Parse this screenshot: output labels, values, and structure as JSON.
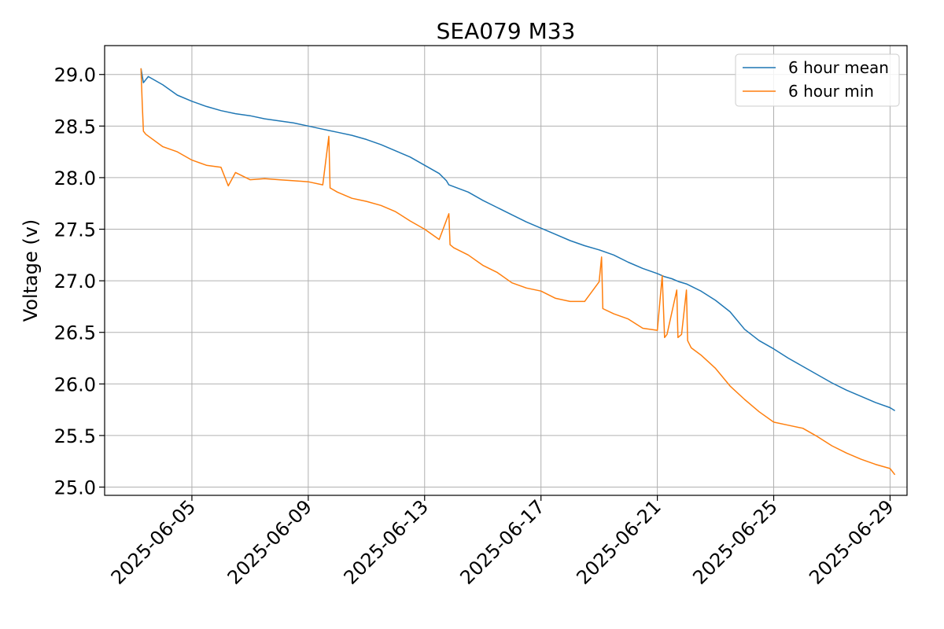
{
  "chart_data": {
    "type": "line",
    "title": "SEA079 M33",
    "xlabel": "",
    "ylabel": "Voltage (v)",
    "x_type": "date",
    "xlim": [
      "2025-06-02T00:00",
      "2025-06-29T14:00"
    ],
    "ylim": [
      24.92,
      29.28
    ],
    "x_ticks": [
      "2025-06-05",
      "2025-06-09",
      "2025-06-13",
      "2025-06-17",
      "2025-06-21",
      "2025-06-25",
      "2025-06-29"
    ],
    "y_ticks": [
      25.0,
      25.5,
      26.0,
      26.5,
      27.0,
      27.5,
      28.0,
      28.5,
      29.0
    ],
    "y_tick_labels": [
      "25.0",
      "25.5",
      "26.0",
      "26.5",
      "27.0",
      "27.5",
      "28.0",
      "28.5",
      "29.0"
    ],
    "grid": true,
    "legend_position": "top-right",
    "series": [
      {
        "name": "6 hour mean",
        "color": "#1f77b4",
        "x": [
          "2025-06-03T06:00",
          "2025-06-03T08:00",
          "2025-06-03T12:00",
          "2025-06-04T00:00",
          "2025-06-04T12:00",
          "2025-06-05T00:00",
          "2025-06-05T12:00",
          "2025-06-06T00:00",
          "2025-06-06T12:00",
          "2025-06-07T00:00",
          "2025-06-07T12:00",
          "2025-06-08T00:00",
          "2025-06-08T12:00",
          "2025-06-09T00:00",
          "2025-06-09T12:00",
          "2025-06-09T16:00",
          "2025-06-10T00:00",
          "2025-06-10T12:00",
          "2025-06-11T00:00",
          "2025-06-11T12:00",
          "2025-06-12T00:00",
          "2025-06-12T12:00",
          "2025-06-13T00:00",
          "2025-06-13T12:00",
          "2025-06-13T18:00",
          "2025-06-13T20:00",
          "2025-06-14T12:00",
          "2025-06-15T00:00",
          "2025-06-15T12:00",
          "2025-06-16T00:00",
          "2025-06-16T12:00",
          "2025-06-17T00:00",
          "2025-06-17T12:00",
          "2025-06-18T00:00",
          "2025-06-18T12:00",
          "2025-06-19T00:00",
          "2025-06-19T12:00",
          "2025-06-20T00:00",
          "2025-06-20T12:00",
          "2025-06-21T00:00",
          "2025-06-21T06:00",
          "2025-06-21T12:00",
          "2025-06-21T18:00",
          "2025-06-22T00:00",
          "2025-06-22T12:00",
          "2025-06-23T00:00",
          "2025-06-23T12:00",
          "2025-06-24T00:00",
          "2025-06-24T12:00",
          "2025-06-25T00:00",
          "2025-06-25T12:00",
          "2025-06-26T00:00",
          "2025-06-26T12:00",
          "2025-06-27T00:00",
          "2025-06-27T12:00",
          "2025-06-28T00:00",
          "2025-06-28T12:00",
          "2025-06-29T00:00",
          "2025-06-29T04:00"
        ],
        "y": [
          29.06,
          28.92,
          28.98,
          28.9,
          28.8,
          28.74,
          28.69,
          28.65,
          28.62,
          28.6,
          28.57,
          28.55,
          28.53,
          28.5,
          28.47,
          28.46,
          28.44,
          28.41,
          28.37,
          28.32,
          28.26,
          28.2,
          28.12,
          28.04,
          27.97,
          27.93,
          27.86,
          27.78,
          27.71,
          27.64,
          27.57,
          27.51,
          27.45,
          27.39,
          27.34,
          27.3,
          27.25,
          27.18,
          27.12,
          27.07,
          27.04,
          27.02,
          26.99,
          26.97,
          26.9,
          26.81,
          26.7,
          26.53,
          26.42,
          26.34,
          26.25,
          26.17,
          26.09,
          26.01,
          25.94,
          25.88,
          25.82,
          25.77,
          25.74
        ]
      },
      {
        "name": "6 hour min",
        "color": "#ff7f0e",
        "x": [
          "2025-06-03T06:00",
          "2025-06-03T07:00",
          "2025-06-03T08:00",
          "2025-06-03T10:00",
          "2025-06-04T00:00",
          "2025-06-04T12:00",
          "2025-06-05T00:00",
          "2025-06-05T12:00",
          "2025-06-06T00:00",
          "2025-06-06T06:00",
          "2025-06-06T12:00",
          "2025-06-07T00:00",
          "2025-06-07T12:00",
          "2025-06-08T00:00",
          "2025-06-08T12:00",
          "2025-06-09T00:00",
          "2025-06-09T12:00",
          "2025-06-09T17:00",
          "2025-06-09T18:00",
          "2025-06-10T00:00",
          "2025-06-10T12:00",
          "2025-06-11T00:00",
          "2025-06-11T12:00",
          "2025-06-12T00:00",
          "2025-06-12T12:00",
          "2025-06-13T00:00",
          "2025-06-13T12:00",
          "2025-06-13T20:00",
          "2025-06-13T21:00",
          "2025-06-14T00:00",
          "2025-06-14T12:00",
          "2025-06-15T00:00",
          "2025-06-15T12:00",
          "2025-06-16T00:00",
          "2025-06-16T12:00",
          "2025-06-17T00:00",
          "2025-06-17T12:00",
          "2025-06-18T00:00",
          "2025-06-18T12:00",
          "2025-06-19T00:00",
          "2025-06-19T02:00",
          "2025-06-19T03:00",
          "2025-06-19T12:00",
          "2025-06-20T00:00",
          "2025-06-20T12:00",
          "2025-06-21T00:00",
          "2025-06-21T04:00",
          "2025-06-21T06:00",
          "2025-06-21T08:00",
          "2025-06-21T16:00",
          "2025-06-21T17:00",
          "2025-06-21T20:00",
          "2025-06-22T00:00",
          "2025-06-22T01:00",
          "2025-06-22T04:00",
          "2025-06-22T12:00",
          "2025-06-23T00:00",
          "2025-06-23T12:00",
          "2025-06-24T00:00",
          "2025-06-24T12:00",
          "2025-06-25T00:00",
          "2025-06-25T12:00",
          "2025-06-26T00:00",
          "2025-06-26T12:00",
          "2025-06-27T00:00",
          "2025-06-27T12:00",
          "2025-06-28T00:00",
          "2025-06-28T12:00",
          "2025-06-29T00:00",
          "2025-06-29T04:00"
        ],
        "y": [
          29.06,
          28.72,
          28.45,
          28.42,
          28.3,
          28.25,
          28.17,
          28.12,
          28.1,
          27.92,
          28.05,
          27.98,
          27.99,
          27.98,
          27.97,
          27.96,
          27.93,
          28.4,
          27.9,
          27.86,
          27.8,
          27.77,
          27.73,
          27.67,
          27.58,
          27.5,
          27.4,
          27.65,
          27.35,
          27.32,
          27.25,
          27.15,
          27.08,
          26.98,
          26.93,
          26.9,
          26.83,
          26.8,
          26.8,
          26.99,
          27.23,
          26.73,
          26.68,
          26.63,
          26.54,
          26.52,
          27.05,
          26.45,
          26.48,
          26.91,
          26.45,
          26.48,
          26.91,
          26.42,
          26.35,
          26.28,
          26.15,
          25.98,
          25.85,
          25.73,
          25.63,
          25.6,
          25.57,
          25.49,
          25.4,
          25.33,
          25.27,
          25.22,
          25.18,
          25.12
        ]
      }
    ]
  }
}
